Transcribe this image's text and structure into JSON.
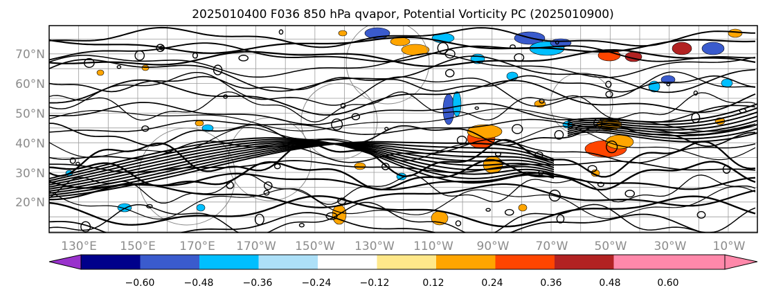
{
  "title": "2025010400 F036 850 hPa qvapor, Potential Vorticity PC (2025010900)",
  "map": {
    "lat_labels": [
      "70°N",
      "60°N",
      "50°N",
      "40°N",
      "30°N",
      "20°N"
    ],
    "lat_values": [
      70,
      60,
      50,
      40,
      30,
      20
    ],
    "lon_labels": [
      "130°E",
      "150°E",
      "170°E",
      "170°W",
      "150°W",
      "130°W",
      "110°W",
      "90°W",
      "70°W",
      "50°W",
      "30°W",
      "10°W"
    ],
    "lat_range": [
      10,
      80
    ],
    "grid": true,
    "gridline_color": "#9a9a9a",
    "contour_color": "#000000"
  },
  "colorbar": {
    "tick_labels": [
      "−0.60",
      "−0.48",
      "−0.36",
      "−0.24",
      "−0.12",
      "0.12",
      "0.24",
      "0.36",
      "0.48",
      "0.60"
    ],
    "bin_colors": [
      "#9932CC",
      "#00008B",
      "#3A5BCD",
      "#00BFFF",
      "#ADE0F8",
      "#FFFFFF",
      "#FFE88A",
      "#FFA500",
      "#FF4500",
      "#B22222",
      "#FF88AA"
    ],
    "extend": "both"
  }
}
